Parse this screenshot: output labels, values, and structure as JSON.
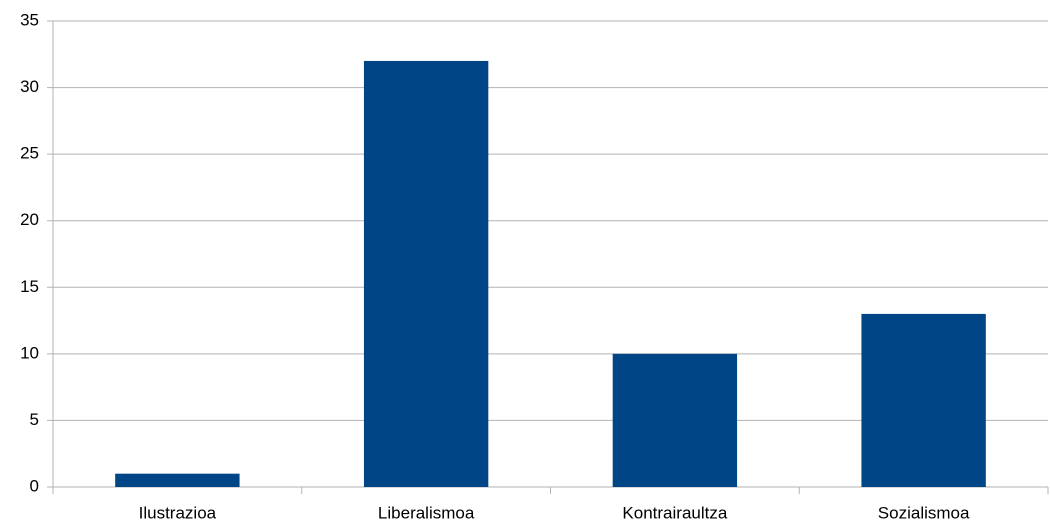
{
  "chart_data": {
    "type": "bar",
    "categories": [
      "Ilustrazioa",
      "Liberalismoa",
      "Kontrairaultza",
      "Sozialismoa"
    ],
    "values": [
      1,
      32,
      10,
      13
    ],
    "color": "#004586",
    "ylim": [
      0,
      35
    ],
    "yticks": [
      0,
      5,
      10,
      15,
      20,
      25,
      30,
      35
    ],
    "grid": true
  }
}
